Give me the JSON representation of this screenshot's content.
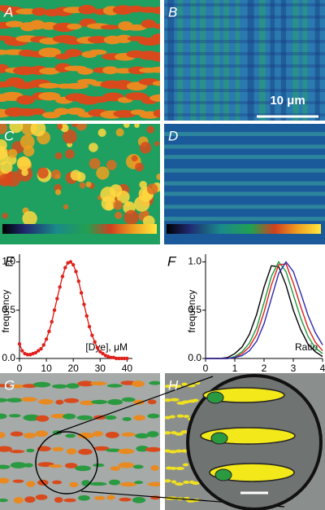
{
  "panels": [
    "A",
    "B",
    "C",
    "D",
    "E",
    "F",
    "G",
    "H"
  ],
  "scale_bar": "10 μm",
  "chart_data": [
    {
      "type": "line",
      "xlabel": "[Dye], μM",
      "ylabel": "frequency",
      "x": [
        0,
        1,
        2,
        3,
        4,
        5,
        6,
        7,
        8,
        9,
        10,
        11,
        12,
        13,
        14,
        15,
        16,
        17,
        18,
        19,
        20,
        21,
        22,
        23,
        24,
        25,
        26,
        27,
        28,
        29,
        30,
        31,
        32,
        33,
        34,
        35,
        36,
        37,
        38,
        39,
        40
      ],
      "series": [
        {
          "color": "#e0201b",
          "markers": true,
          "values": [
            0.15,
            0.08,
            0.05,
            0.04,
            0.04,
            0.05,
            0.06,
            0.08,
            0.1,
            0.14,
            0.2,
            0.28,
            0.38,
            0.5,
            0.62,
            0.74,
            0.85,
            0.94,
            0.99,
            1.0,
            0.97,
            0.9,
            0.8,
            0.68,
            0.56,
            0.44,
            0.33,
            0.24,
            0.17,
            0.11,
            0.07,
            0.05,
            0.03,
            0.02,
            0.01,
            0.01,
            0,
            0,
            0,
            0,
            0
          ]
        }
      ],
      "xlim": [
        0,
        42
      ],
      "ylim": [
        0,
        1.08
      ],
      "xticks": [
        0,
        10,
        20,
        30,
        40
      ],
      "yticks": [
        {
          "value": 0,
          "label": "0.0"
        },
        {
          "value": 0.5,
          "label": "0.5"
        },
        {
          "value": 1,
          "label": "1.0"
        }
      ]
    },
    {
      "type": "line",
      "xlabel": "Ratio",
      "ylabel": "frequency",
      "x": [
        0,
        0.25,
        0.5,
        0.75,
        1,
        1.25,
        1.5,
        1.75,
        2,
        2.25,
        2.5,
        2.75,
        3,
        3.25,
        3.5,
        3.75,
        4
      ],
      "series": [
        {
          "color": "#000000",
          "values": [
            0,
            0,
            0,
            0.01,
            0.05,
            0.12,
            0.25,
            0.46,
            0.74,
            0.96,
            0.95,
            0.76,
            0.5,
            0.3,
            0.15,
            0.07,
            0.02
          ]
        },
        {
          "color": "#1a9a3a",
          "values": [
            0,
            0,
            0,
            0,
            0.02,
            0.07,
            0.16,
            0.32,
            0.58,
            0.85,
            1.0,
            0.9,
            0.66,
            0.42,
            0.23,
            0.11,
            0.05
          ]
        },
        {
          "color": "#e0201b",
          "values": [
            0,
            0,
            0,
            0,
            0.01,
            0.05,
            0.12,
            0.25,
            0.48,
            0.76,
            0.97,
            0.98,
            0.78,
            0.54,
            0.32,
            0.17,
            0.08
          ]
        },
        {
          "color": "#2a2ab0",
          "values": [
            0,
            0,
            0,
            0,
            0.01,
            0.03,
            0.08,
            0.18,
            0.36,
            0.62,
            0.88,
            1.0,
            0.9,
            0.68,
            0.45,
            0.27,
            0.14
          ]
        }
      ],
      "xlim": [
        0,
        4
      ],
      "ylim": [
        0,
        1.08
      ],
      "xticks": [
        0,
        1,
        2,
        3,
        4
      ],
      "yticks": [
        {
          "value": 0,
          "label": "0.0"
        },
        {
          "value": 0.5,
          "label": "0.5"
        },
        {
          "value": 1,
          "label": "1.0"
        }
      ]
    }
  ]
}
